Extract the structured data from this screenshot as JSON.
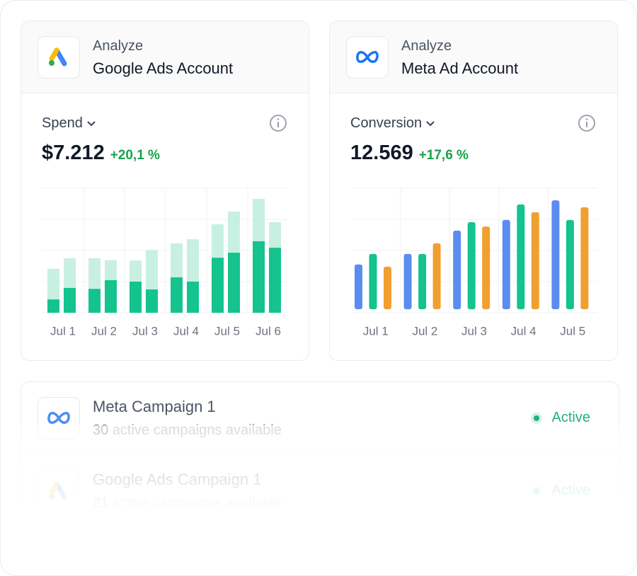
{
  "cards": [
    {
      "eyebrow": "Analyze",
      "title": "Google Ads Account",
      "metric": "Spend",
      "value": "$7.212",
      "change": "+20,1 %",
      "chart_data": {
        "type": "stacked-bar",
        "categories": [
          "Jul 1",
          "Jul 2",
          "Jul 3",
          "Jul 4",
          "Jul 5",
          "Jul 6"
        ],
        "stacks": [
          {
            "segments": [
              {
                "color": "#14c38e",
                "values": [
                  0.43,
                  0.77,
                  1.0,
                  1.14,
                  1.77,
                  2.3
                ]
              },
              {
                "color": "#c8f0e1",
                "values": [
                  0.98,
                  0.98,
                  0.68,
                  1.09,
                  1.07,
                  1.36
                ]
              }
            ]
          },
          {
            "segments": [
              {
                "color": "#14c38e",
                "values": [
                  0.8,
                  1.05,
                  0.75,
                  1.0,
                  1.93,
                  2.09
                ]
              },
              {
                "color": "#c8f0e1",
                "values": [
                  0.95,
                  0.64,
                  1.27,
                  1.36,
                  1.32,
                  0.82
                ]
              }
            ]
          }
        ],
        "ylim": [
          0,
          4
        ],
        "yticks": [
          0,
          1,
          2,
          3,
          4
        ],
        "grid": true
      }
    },
    {
      "eyebrow": "Analyze",
      "title": "Meta Ad Account",
      "metric": "Conversion",
      "value": "12.569",
      "change": "+17,6 %",
      "chart_data": {
        "type": "grouped-bar",
        "categories": [
          "Jul 1",
          "Jul 2",
          "Jul 3",
          "Jul 4",
          "Jul 5"
        ],
        "series": [
          {
            "color": "#5b8def",
            "values": [
              1.55,
              1.89,
              2.64,
              2.98,
              3.61
            ]
          },
          {
            "color": "#14c38e",
            "values": [
              1.89,
              1.89,
              2.91,
              3.48,
              2.98
            ]
          },
          {
            "color": "#f0a030",
            "values": [
              1.48,
              2.23,
              2.77,
              3.23,
              3.39
            ]
          }
        ],
        "ylim": [
          0,
          4
        ],
        "yticks": [
          0,
          1,
          2,
          3,
          4
        ],
        "grid": true
      }
    }
  ],
  "campaigns": [
    {
      "name": "Meta Campaign 1",
      "count": "30",
      "detail": "active campaigns available",
      "status": "Active"
    },
    {
      "name": "Google Ads Campaign 1",
      "count": "21",
      "detail": "active campaigns available",
      "status": "Active"
    }
  ]
}
